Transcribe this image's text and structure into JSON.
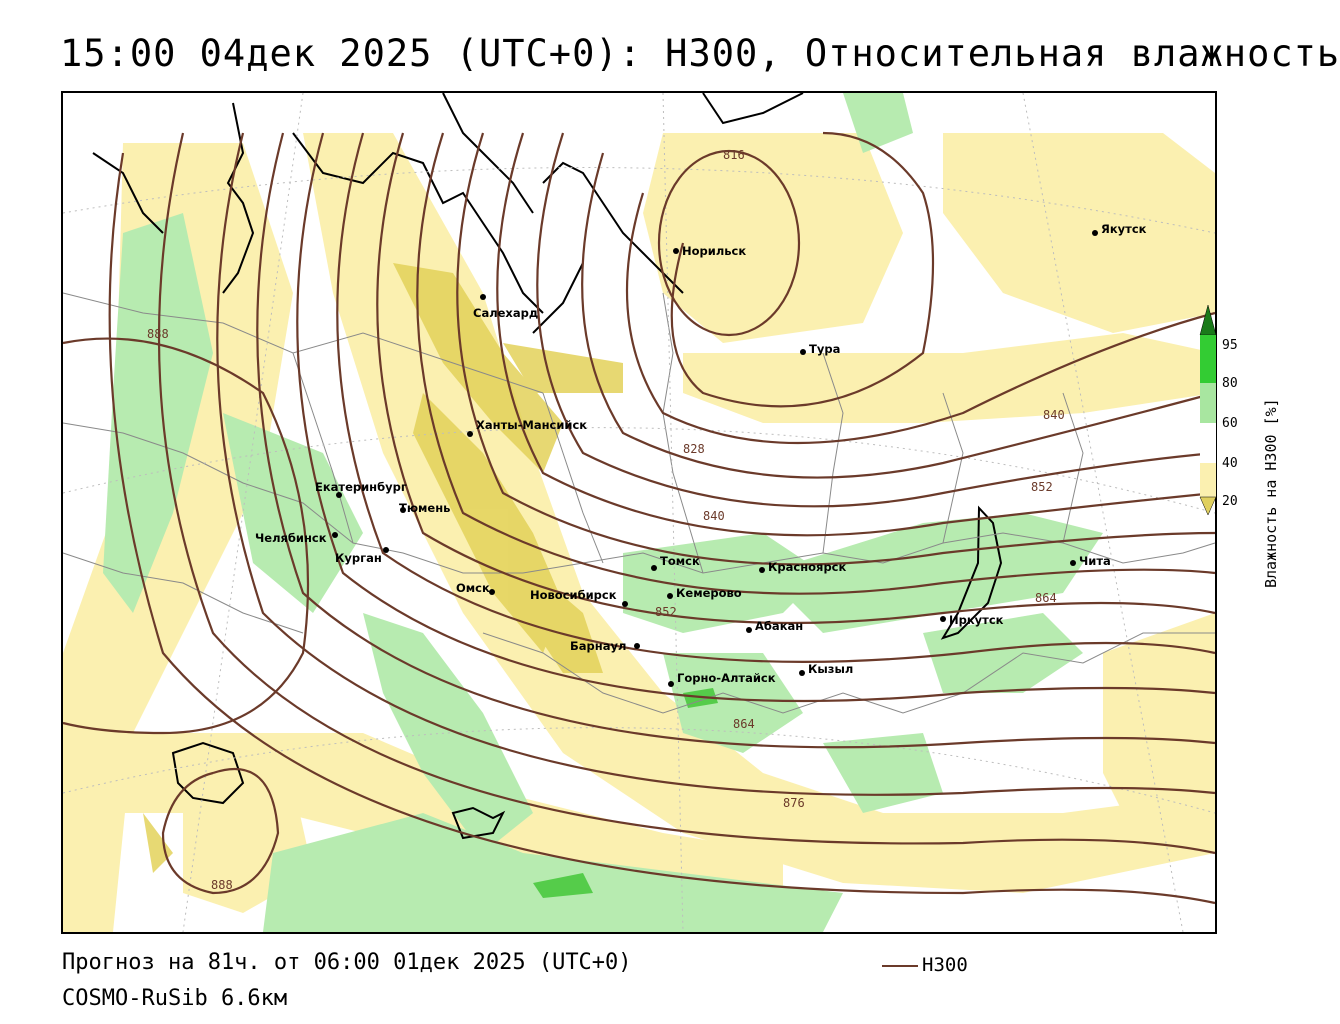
{
  "title": "15:00 04дек 2025 (UTC+0): H300, Относительная влажность",
  "footer": {
    "forecast": "Прогноз на 81ч. от 06:00 01дек 2025 (UTC+0)",
    "model": "COSMO-RuSib 6.6км"
  },
  "legend": {
    "contour_label": "H300",
    "contour_color": "#6b3a2a"
  },
  "colorbar": {
    "title": "Влажность на H300 [%]",
    "ticks": [
      "95",
      "80",
      "60",
      "40",
      "20"
    ],
    "colors": {
      "very_high": "#1a7a1a",
      "high": "#33cc33",
      "mid_high": "#a8e6a0",
      "low": "#fbf0b0",
      "very_low": "#e0d060"
    }
  },
  "cities": [
    {
      "name": "Норильск"
    },
    {
      "name": "Якутск"
    },
    {
      "name": "Салехард"
    },
    {
      "name": "Тура"
    },
    {
      "name": "Ханты-Мансийск"
    },
    {
      "name": "Екатеринбург"
    },
    {
      "name": "Тюмень"
    },
    {
      "name": "Челябинск"
    },
    {
      "name": "Курган"
    },
    {
      "name": "Омск"
    },
    {
      "name": "Новосибирск"
    },
    {
      "name": "Томск"
    },
    {
      "name": "Кемерово"
    },
    {
      "name": "Красноярск"
    },
    {
      "name": "Абакан"
    },
    {
      "name": "Барнаул"
    },
    {
      "name": "Горно-Алтайск"
    },
    {
      "name": "Кызыл"
    },
    {
      "name": "Иркутск"
    },
    {
      "name": "Чита"
    }
  ],
  "isolines": [
    "816",
    "828",
    "840",
    "840",
    "852",
    "852",
    "864",
    "864",
    "876",
    "888",
    "888"
  ]
}
